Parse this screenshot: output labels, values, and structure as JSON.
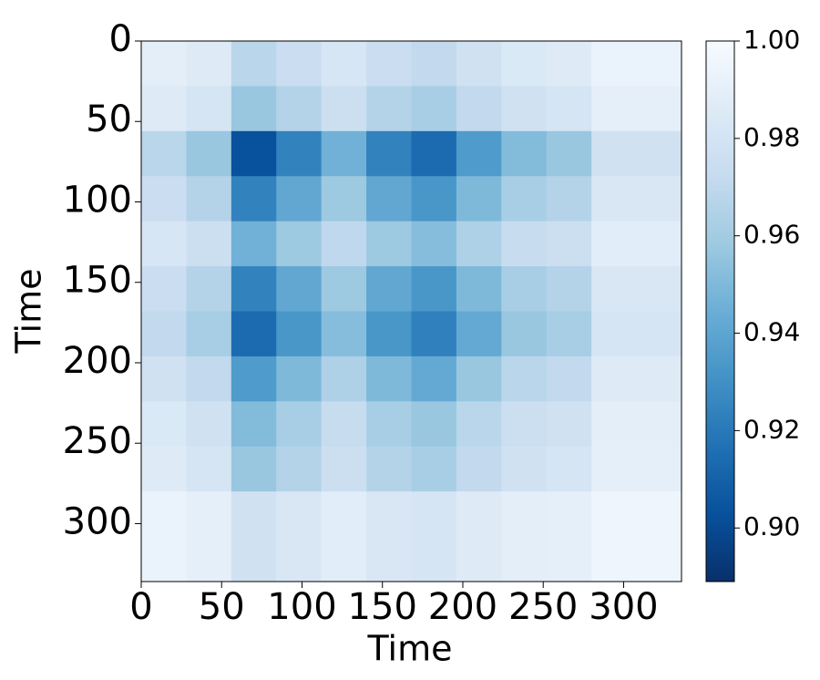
{
  "chart_data": {
    "type": "heatmap",
    "cmap": "Blues_r",
    "xlabel": "Time",
    "ylabel": "Time",
    "x_bins": [
      0,
      28,
      56,
      84,
      112,
      140,
      168,
      196,
      224,
      252,
      280,
      308,
      336
    ],
    "y_bins": [
      0,
      28,
      56,
      84,
      112,
      140,
      168,
      196,
      224,
      252,
      280,
      308,
      336
    ],
    "values": [
      [
        0.989,
        0.986,
        0.968,
        0.975,
        0.982,
        0.975,
        0.971,
        0.978,
        0.984,
        0.986,
        0.993,
        0.993
      ],
      [
        0.986,
        0.981,
        0.957,
        0.966,
        0.976,
        0.966,
        0.962,
        0.971,
        0.978,
        0.981,
        0.99,
        0.99
      ],
      [
        0.968,
        0.957,
        0.903,
        0.924,
        0.946,
        0.924,
        0.914,
        0.935,
        0.951,
        0.957,
        0.978,
        0.978
      ],
      [
        0.975,
        0.966,
        0.924,
        0.941,
        0.958,
        0.941,
        0.933,
        0.95,
        0.962,
        0.966,
        0.983,
        0.983
      ],
      [
        0.982,
        0.976,
        0.946,
        0.958,
        0.97,
        0.958,
        0.952,
        0.964,
        0.973,
        0.976,
        0.988,
        0.988
      ],
      [
        0.975,
        0.966,
        0.924,
        0.941,
        0.958,
        0.941,
        0.933,
        0.95,
        0.962,
        0.966,
        0.983,
        0.983
      ],
      [
        0.971,
        0.962,
        0.914,
        0.933,
        0.952,
        0.933,
        0.923,
        0.942,
        0.957,
        0.962,
        0.981,
        0.981
      ],
      [
        0.978,
        0.971,
        0.935,
        0.95,
        0.964,
        0.95,
        0.942,
        0.957,
        0.968,
        0.971,
        0.986,
        0.986
      ],
      [
        0.984,
        0.978,
        0.951,
        0.962,
        0.973,
        0.962,
        0.957,
        0.968,
        0.976,
        0.978,
        0.989,
        0.989
      ],
      [
        0.986,
        0.981,
        0.957,
        0.966,
        0.976,
        0.966,
        0.962,
        0.971,
        0.978,
        0.981,
        0.99,
        0.99
      ],
      [
        0.993,
        0.99,
        0.978,
        0.983,
        0.988,
        0.983,
        0.981,
        0.986,
        0.989,
        0.99,
        0.995,
        0.995
      ],
      [
        0.993,
        0.99,
        0.978,
        0.983,
        0.988,
        0.983,
        0.981,
        0.986,
        0.989,
        0.99,
        0.995,
        0.995
      ]
    ],
    "xlim": [
      0,
      336
    ],
    "ylim": [
      336,
      0
    ],
    "xticks": [
      0,
      50,
      100,
      150,
      200,
      250,
      300
    ],
    "yticks": [
      0,
      50,
      100,
      150,
      200,
      250,
      300
    ],
    "clim": [
      0.889,
      1.0
    ],
    "cticks": [
      {
        "value": 0.9,
        "label": "0.90"
      },
      0.92,
      0.94,
      0.96,
      0.98,
      {
        "value": 1.0,
        "label": "1.00"
      }
    ]
  }
}
